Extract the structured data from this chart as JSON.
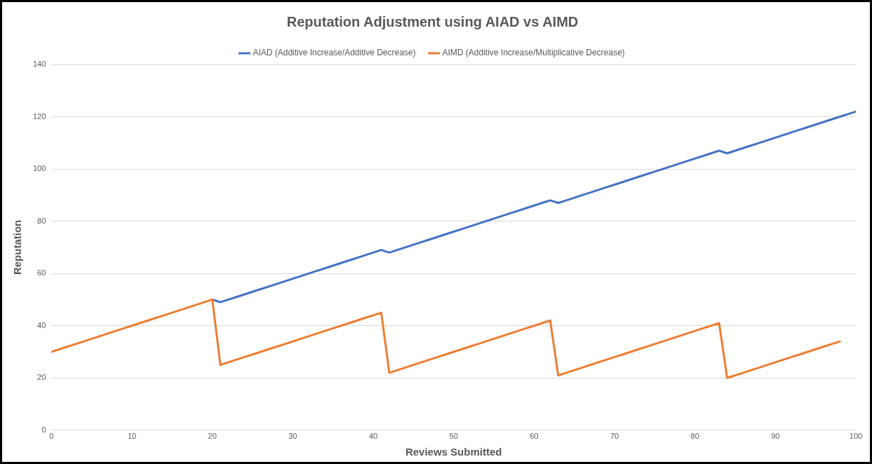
{
  "chart_data": {
    "type": "line",
    "title": "Reputation Adjustment using AIAD vs AIMD",
    "xlabel": "Reviews Submitted",
    "ylabel": "Reputation",
    "x": [
      0,
      1,
      2,
      3,
      4,
      5,
      6,
      7,
      8,
      9,
      10,
      11,
      12,
      13,
      14,
      15,
      16,
      17,
      18,
      19,
      20,
      21,
      22,
      23,
      24,
      25,
      26,
      27,
      28,
      29,
      30,
      31,
      32,
      33,
      34,
      35,
      36,
      37,
      38,
      39,
      40,
      41,
      42,
      43,
      44,
      45,
      46,
      47,
      48,
      49,
      50,
      51,
      52,
      53,
      54,
      55,
      56,
      57,
      58,
      59,
      60,
      61,
      62,
      63,
      64,
      65,
      66,
      67,
      68,
      69,
      70,
      71,
      72,
      73,
      74,
      75,
      76,
      77,
      78,
      79,
      80,
      81,
      82,
      83,
      84,
      85,
      86,
      87,
      88,
      89,
      90,
      91,
      92,
      93,
      94,
      95,
      96,
      97,
      98,
      99,
      100
    ],
    "series": [
      {
        "name": "AIAD (Additive Increase/Additive Decrease)",
        "color": "#4472c4",
        "values": [
          null,
          null,
          null,
          null,
          null,
          null,
          null,
          null,
          null,
          null,
          null,
          null,
          null,
          null,
          null,
          null,
          null,
          null,
          null,
          null,
          50,
          49,
          50,
          51,
          52,
          53,
          54,
          55,
          56,
          57,
          58,
          59,
          60,
          61,
          62,
          63,
          64,
          65,
          66,
          67,
          68,
          69,
          68,
          69,
          70,
          71,
          72,
          73,
          74,
          75,
          76,
          77,
          78,
          79,
          80,
          81,
          82,
          83,
          84,
          85,
          86,
          87,
          88,
          87,
          88,
          89,
          90,
          91,
          92,
          93,
          94,
          95,
          96,
          97,
          98,
          99,
          100,
          101,
          102,
          103,
          104,
          105,
          106,
          107,
          106,
          107,
          108,
          109,
          110,
          111,
          112,
          113,
          114,
          115,
          116,
          117,
          118,
          119,
          120,
          121,
          122
        ]
      },
      {
        "name": "AIMD (Additive Increase/Multiplicative Decrease)",
        "color": "#ed7d31",
        "values": [
          30,
          31,
          32,
          33,
          34,
          35,
          36,
          37,
          38,
          39,
          40,
          41,
          42,
          43,
          44,
          45,
          46,
          47,
          48,
          49,
          50,
          25,
          26,
          27,
          28,
          29,
          30,
          31,
          32,
          33,
          34,
          35,
          36,
          37,
          38,
          39,
          40,
          41,
          42,
          43,
          44,
          45,
          22,
          23,
          24,
          25,
          26,
          27,
          28,
          29,
          30,
          31,
          32,
          33,
          34,
          35,
          36,
          37,
          38,
          39,
          40,
          41,
          42,
          21,
          22,
          23,
          24,
          25,
          26,
          27,
          28,
          29,
          30,
          31,
          32,
          33,
          34,
          35,
          36,
          37,
          38,
          39,
          40,
          41,
          20,
          21,
          22,
          23,
          24,
          25,
          26,
          27,
          28,
          29,
          30,
          31,
          32,
          33,
          34,
          null,
          null
        ]
      }
    ],
    "xlim": [
      0,
      100
    ],
    "xticks": [
      0,
      10,
      20,
      30,
      40,
      50,
      60,
      70,
      80,
      90,
      100
    ],
    "ylim": [
      0,
      140
    ],
    "yticks": [
      0,
      20,
      40,
      60,
      80,
      100,
      120,
      140
    ],
    "grid": "y",
    "legend": "top",
    "marker": "none",
    "line_style": "solid"
  }
}
